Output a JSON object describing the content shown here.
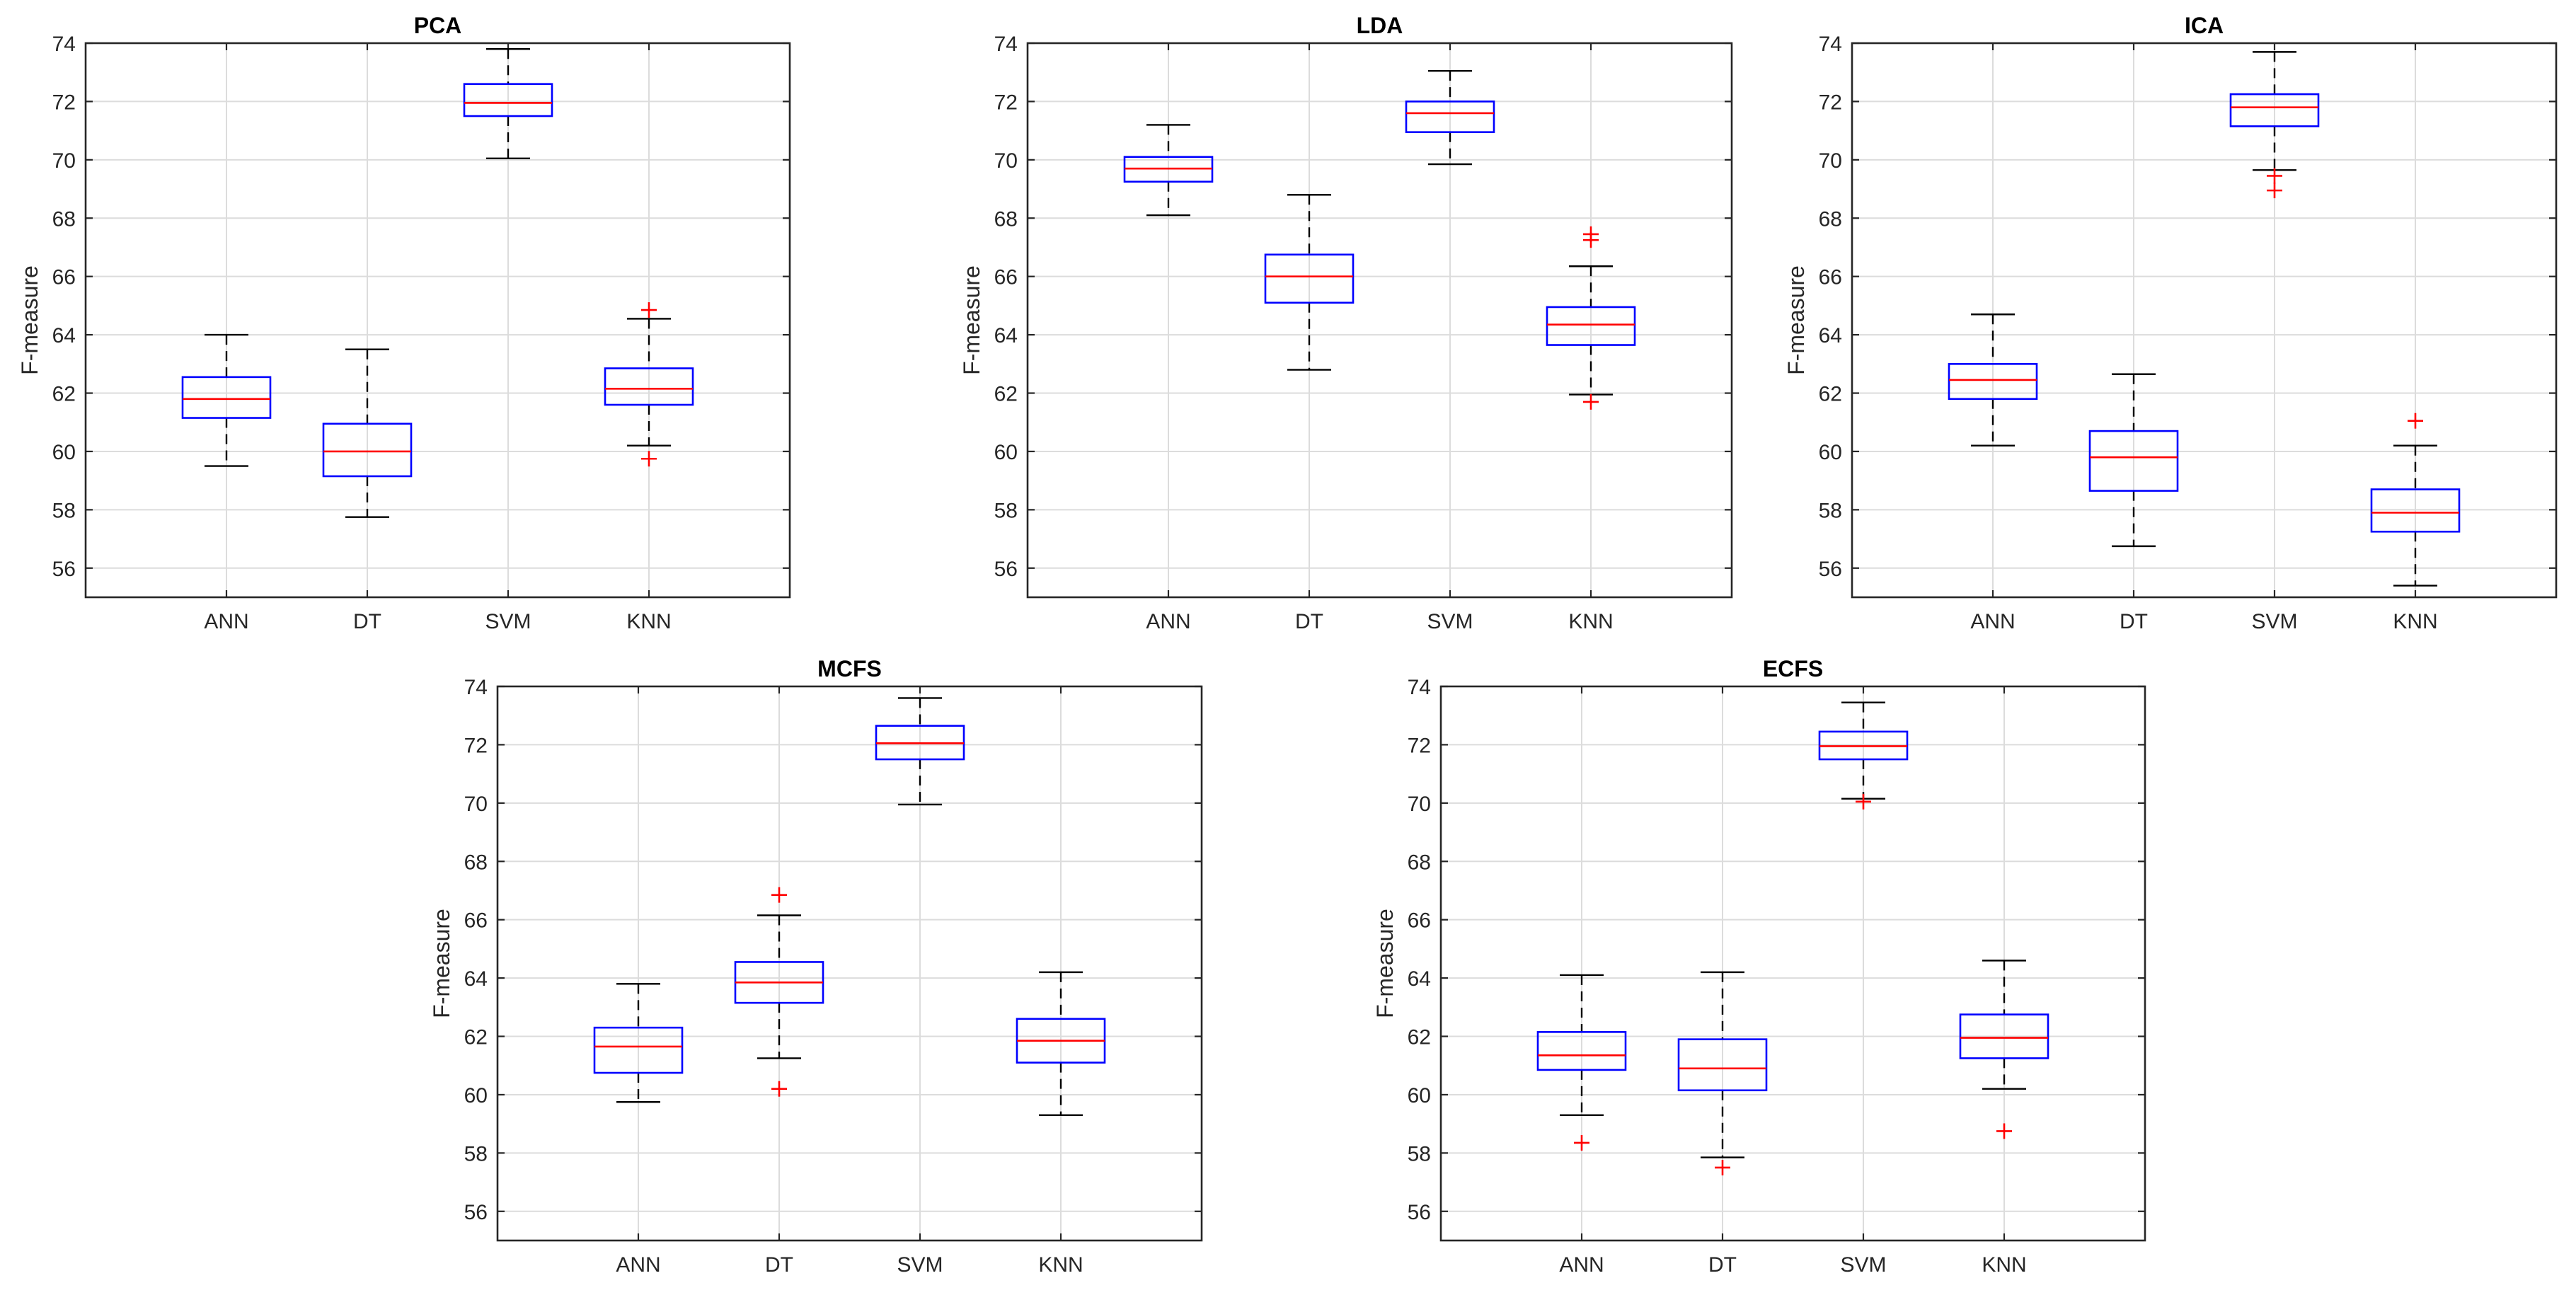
{
  "chart_data": [
    {
      "type": "boxplot",
      "title": "PCA",
      "ylabel": "F-measure",
      "categories": [
        "ANN",
        "DT",
        "SVM",
        "KNN"
      ],
      "ylim": [
        55,
        74
      ],
      "yticks": [
        56,
        58,
        60,
        62,
        64,
        66,
        68,
        70,
        72,
        74
      ],
      "boxes": [
        {
          "min": 59.5,
          "q1": 61.15,
          "median": 61.8,
          "q3": 62.55,
          "max": 64.0,
          "outliers": []
        },
        {
          "min": 57.75,
          "q1": 59.15,
          "median": 60.0,
          "q3": 60.95,
          "max": 63.5,
          "outliers": []
        },
        {
          "min": 70.05,
          "q1": 71.5,
          "median": 71.95,
          "q3": 72.6,
          "max": 73.8,
          "outliers": []
        },
        {
          "min": 60.2,
          "q1": 61.6,
          "median": 62.15,
          "q3": 62.85,
          "max": 64.55,
          "outliers": [
            64.85,
            59.75
          ]
        }
      ]
    },
    {
      "type": "boxplot",
      "title": "LDA",
      "ylabel": "F-measure",
      "categories": [
        "ANN",
        "DT",
        "SVM",
        "KNN"
      ],
      "ylim": [
        55,
        74
      ],
      "yticks": [
        56,
        58,
        60,
        62,
        64,
        66,
        68,
        70,
        72,
        74
      ],
      "boxes": [
        {
          "min": 68.1,
          "q1": 69.25,
          "median": 69.7,
          "q3": 70.1,
          "max": 71.2,
          "outliers": []
        },
        {
          "min": 62.8,
          "q1": 65.1,
          "median": 66.0,
          "q3": 66.75,
          "max": 68.8,
          "outliers": []
        },
        {
          "min": 69.85,
          "q1": 70.95,
          "median": 71.6,
          "q3": 72.0,
          "max": 73.05,
          "outliers": []
        },
        {
          "min": 61.95,
          "q1": 63.65,
          "median": 64.35,
          "q3": 64.95,
          "max": 66.35,
          "outliers": [
            67.45,
            67.25,
            61.7
          ]
        }
      ]
    },
    {
      "type": "boxplot",
      "title": "ICA",
      "ylabel": "F-measure",
      "categories": [
        "ANN",
        "DT",
        "SVM",
        "KNN"
      ],
      "ylim": [
        55,
        74
      ],
      "yticks": [
        56,
        58,
        60,
        62,
        64,
        66,
        68,
        70,
        72,
        74
      ],
      "boxes": [
        {
          "min": 60.2,
          "q1": 61.8,
          "median": 62.45,
          "q3": 63.0,
          "max": 64.7,
          "outliers": []
        },
        {
          "min": 56.75,
          "q1": 58.65,
          "median": 59.8,
          "q3": 60.7,
          "max": 62.65,
          "outliers": []
        },
        {
          "min": 69.65,
          "q1": 71.15,
          "median": 71.8,
          "q3": 72.25,
          "max": 73.7,
          "outliers": [
            69.45,
            68.95
          ]
        },
        {
          "min": 55.4,
          "q1": 57.25,
          "median": 57.9,
          "q3": 58.7,
          "max": 60.2,
          "outliers": [
            61.05
          ]
        }
      ]
    },
    {
      "type": "boxplot",
      "title": "MCFS",
      "ylabel": "F-measure",
      "categories": [
        "ANN",
        "DT",
        "SVM",
        "KNN"
      ],
      "ylim": [
        55,
        74
      ],
      "yticks": [
        56,
        58,
        60,
        62,
        64,
        66,
        68,
        70,
        72,
        74
      ],
      "boxes": [
        {
          "min": 59.75,
          "q1": 60.75,
          "median": 61.65,
          "q3": 62.3,
          "max": 63.8,
          "outliers": []
        },
        {
          "min": 61.25,
          "q1": 63.15,
          "median": 63.85,
          "q3": 64.55,
          "max": 66.15,
          "outliers": [
            66.85,
            60.2
          ]
        },
        {
          "min": 69.95,
          "q1": 71.5,
          "median": 72.05,
          "q3": 72.65,
          "max": 73.6,
          "outliers": []
        },
        {
          "min": 59.3,
          "q1": 61.1,
          "median": 61.85,
          "q3": 62.6,
          "max": 64.2,
          "outliers": []
        }
      ]
    },
    {
      "type": "boxplot",
      "title": "ECFS",
      "ylabel": "F-measure",
      "categories": [
        "ANN",
        "DT",
        "SVM",
        "KNN"
      ],
      "ylim": [
        55,
        74
      ],
      "yticks": [
        56,
        58,
        60,
        62,
        64,
        66,
        68,
        70,
        72,
        74
      ],
      "boxes": [
        {
          "min": 59.3,
          "q1": 60.85,
          "median": 61.35,
          "q3": 62.15,
          "max": 64.1,
          "outliers": [
            58.35
          ]
        },
        {
          "min": 57.85,
          "q1": 60.15,
          "median": 60.9,
          "q3": 61.9,
          "max": 64.2,
          "outliers": [
            57.5
          ]
        },
        {
          "min": 70.15,
          "q1": 71.5,
          "median": 71.95,
          "q3": 72.45,
          "max": 73.45,
          "outliers": [
            70.05
          ]
        },
        {
          "min": 60.2,
          "q1": 61.25,
          "median": 61.95,
          "q3": 62.75,
          "max": 64.6,
          "outliers": [
            58.75
          ]
        }
      ]
    }
  ],
  "colors": {
    "box": "#0000ff",
    "median": "#ff0000",
    "outlier": "#ff0000",
    "whisker": "#000000"
  }
}
